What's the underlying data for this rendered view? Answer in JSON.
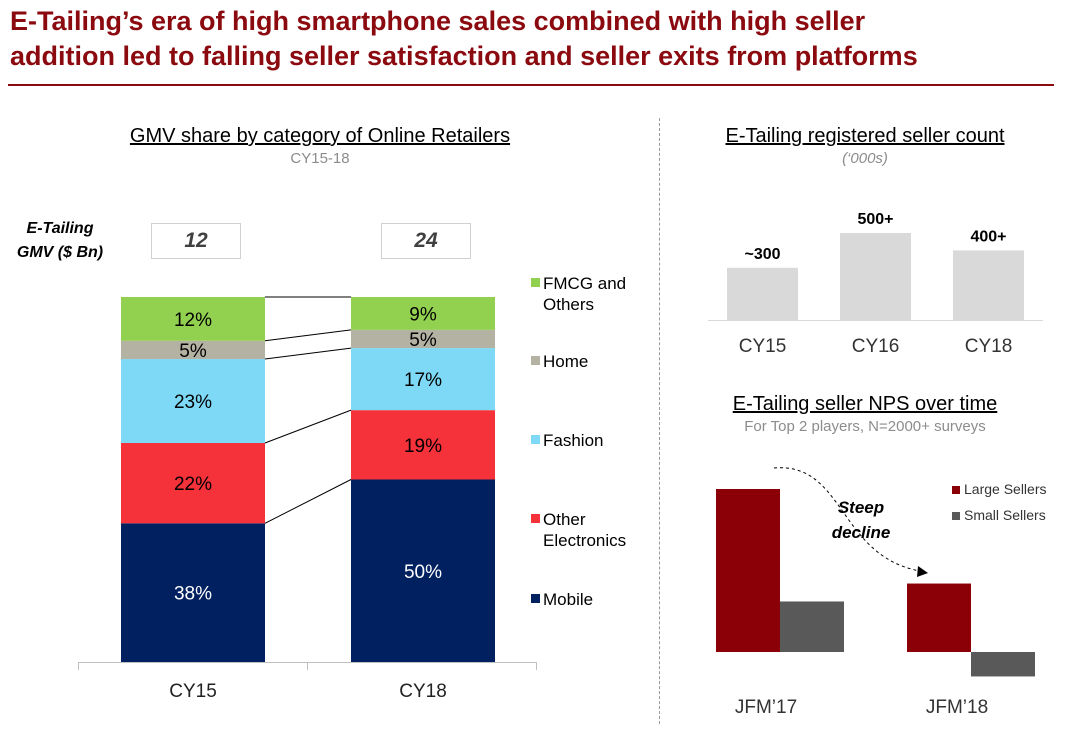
{
  "header": {
    "title_line1": "E-Tailing’s era of high smartphone sales combined with high seller",
    "title_line2": "addition led to falling seller satisfaction and seller exits from platforms"
  },
  "colors": {
    "title": "#8b0a0f",
    "fmcg": "#92d050",
    "home": "#b4b2a3",
    "fashion": "#7dd9f5",
    "other_electronics": "#f5313a",
    "mobile": "#002060",
    "seller_bar": "#d9d9d9",
    "large_sellers": "#8b0007",
    "small_sellers": "#595959"
  },
  "gmv_panel": {
    "gmv_label_line1": "E-Tailing",
    "gmv_label_line2": "GMV ($ Bn)",
    "gmv_values": [
      "12",
      "24"
    ]
  },
  "chart_data": [
    {
      "type": "bar",
      "stacked": true,
      "percent": true,
      "title": "GMV share by category of Online Retailers",
      "subtitle": "CY15-18",
      "categories": [
        "CY15",
        "CY18"
      ],
      "series": [
        {
          "name": "Mobile",
          "values": [
            38,
            50
          ]
        },
        {
          "name": "Other Electronics",
          "values": [
            22,
            19
          ]
        },
        {
          "name": "Fashion",
          "values": [
            23,
            17
          ]
        },
        {
          "name": "Home",
          "values": [
            5,
            5
          ]
        },
        {
          "name": "FMCG and Others",
          "values": [
            12,
            9
          ]
        }
      ],
      "legend_position": "right",
      "grid": false
    },
    {
      "type": "bar",
      "title": "E-Tailing registered seller count",
      "subtitle": "(‘000s)",
      "categories": [
        "CY15",
        "CY16",
        "CY18"
      ],
      "values": [
        300,
        500,
        400
      ],
      "value_labels": [
        "~300",
        "500+",
        "400+"
      ],
      "grid": false
    },
    {
      "type": "bar",
      "title": "E-Tailing seller NPS over time",
      "subtitle": "For Top 2 players, N=2000+ surveys",
      "categories": [
        "JFM’17",
        "JFM’18"
      ],
      "series": [
        {
          "name": "Large Sellers",
          "values": [
            100,
            42
          ]
        },
        {
          "name": "Small Sellers",
          "values": [
            31,
            -15
          ]
        }
      ],
      "annotation_line1": "Steep",
      "annotation_line2": "decline",
      "legend_position": "right",
      "grid": false
    }
  ]
}
